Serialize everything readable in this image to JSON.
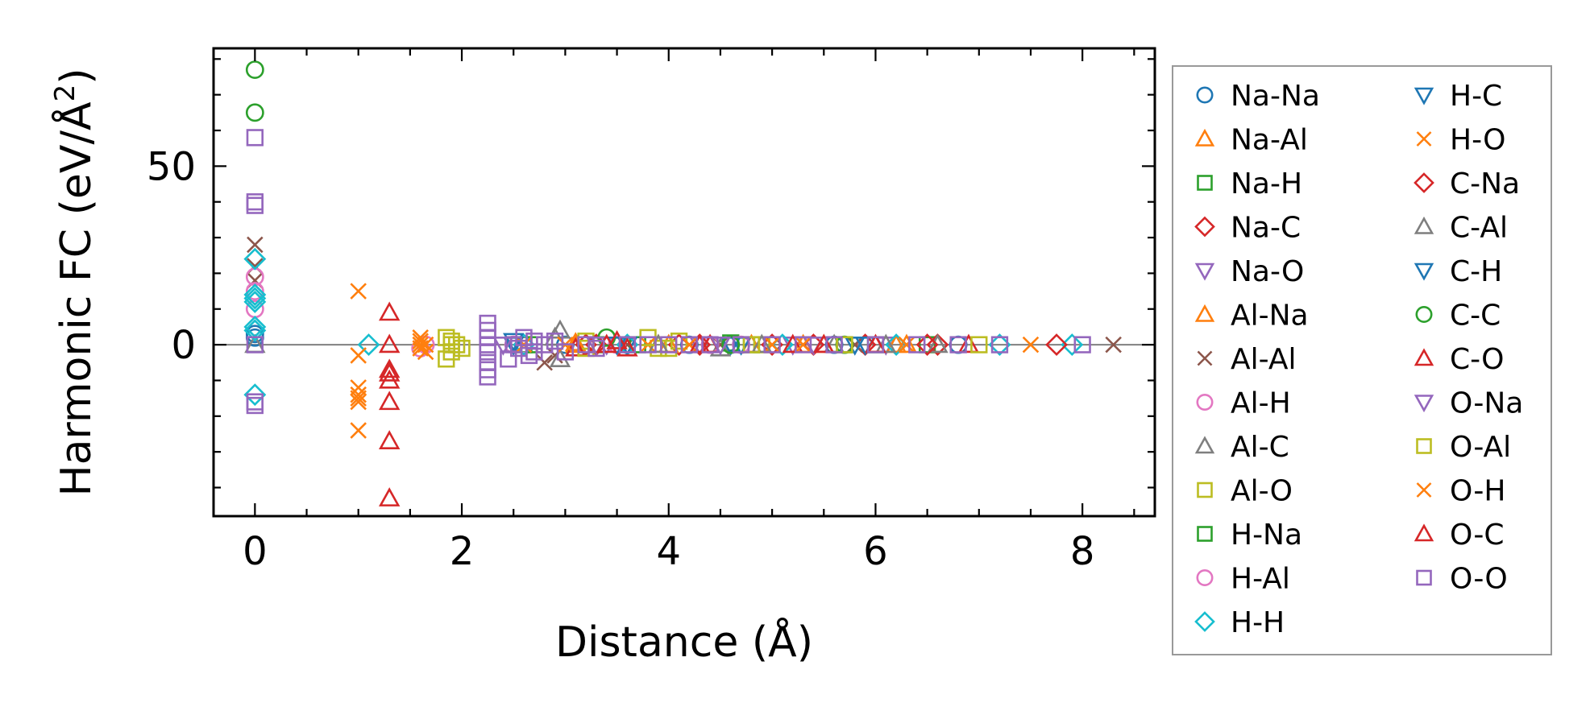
{
  "chart_data": {
    "type": "scatter",
    "title": "",
    "xlabel": "Distance (Å)",
    "ylabel": "Harmonic FC (eV/Å",
    "ylabel_superscript": "2",
    "ylabel_close": ")",
    "xlim": [
      -0.4,
      8.7
    ],
    "ylim": [
      -48,
      83
    ],
    "xticks": [
      0,
      2,
      4,
      6,
      8
    ],
    "yticks": [
      0,
      50
    ],
    "grid": false,
    "zero_line": true,
    "legend_position": "outside-right",
    "series": [
      {
        "name": "Na-Na",
        "marker": "circle",
        "color": "#1f77b4",
        "points": [
          [
            0,
            2
          ],
          [
            0,
            3
          ],
          [
            3.0,
            0
          ],
          [
            4.2,
            0
          ],
          [
            5.6,
            0
          ],
          [
            6.8,
            0
          ]
        ]
      },
      {
        "name": "Na-Al",
        "marker": "triangle-up",
        "color": "#ff7f0e",
        "points": [
          [
            3.1,
            0.5
          ],
          [
            3.9,
            0
          ],
          [
            4.8,
            0
          ],
          [
            5.5,
            0
          ],
          [
            6.3,
            0
          ]
        ]
      },
      {
        "name": "Na-H",
        "marker": "square",
        "color": "#2ca02c",
        "points": [
          [
            2.6,
            0
          ],
          [
            3.3,
            0
          ],
          [
            4.6,
            0.5
          ],
          [
            5.7,
            0
          ],
          [
            6.5,
            0
          ]
        ]
      },
      {
        "name": "Na-C",
        "marker": "diamond",
        "color": "#d62728",
        "points": [
          [
            3.2,
            0
          ],
          [
            4.1,
            0
          ],
          [
            5.0,
            0
          ],
          [
            5.9,
            0
          ],
          [
            6.6,
            0
          ]
        ]
      },
      {
        "name": "Na-O",
        "marker": "triangle-down",
        "color": "#9467bd",
        "points": [
          [
            2.5,
            0
          ],
          [
            3.4,
            0
          ],
          [
            4.3,
            0
          ],
          [
            5.2,
            0
          ],
          [
            6.1,
            0
          ]
        ]
      },
      {
        "name": "Al-Na",
        "marker": "triangle-up",
        "color": "#ff7f0e",
        "points": [
          [
            3.1,
            0
          ],
          [
            4.0,
            0
          ],
          [
            5.3,
            0
          ],
          [
            6.2,
            0
          ]
        ]
      },
      {
        "name": "Al-Al",
        "marker": "x",
        "color": "#8c564b",
        "points": [
          [
            0,
            22
          ],
          [
            0,
            28
          ],
          [
            0,
            18
          ],
          [
            2.8,
            -5
          ],
          [
            2.9,
            -3
          ],
          [
            3.6,
            0
          ],
          [
            4.5,
            0
          ],
          [
            5.8,
            0
          ],
          [
            8.3,
            0
          ]
        ]
      },
      {
        "name": "Al-H",
        "marker": "circle",
        "color": "#e377c2",
        "points": [
          [
            0,
            10
          ],
          [
            0,
            15
          ],
          [
            0,
            19
          ],
          [
            1.65,
            0
          ],
          [
            2.6,
            0
          ],
          [
            3.5,
            0
          ],
          [
            4.7,
            0
          ]
        ]
      },
      {
        "name": "Al-C",
        "marker": "triangle-up",
        "color": "#7f7f7f",
        "points": [
          [
            0,
            0
          ],
          [
            2.95,
            4
          ],
          [
            2.95,
            -4
          ],
          [
            4.5,
            -1
          ],
          [
            5.6,
            0
          ],
          [
            6.6,
            0
          ]
        ]
      },
      {
        "name": "Al-O",
        "marker": "square",
        "color": "#bcbd22",
        "points": [
          [
            1.85,
            -4
          ],
          [
            1.85,
            2
          ],
          [
            1.9,
            -2
          ],
          [
            1.95,
            0
          ],
          [
            1.9,
            1
          ],
          [
            2.0,
            -1
          ],
          [
            3.2,
            1
          ],
          [
            3.9,
            -1
          ],
          [
            4.1,
            1
          ],
          [
            4.9,
            0
          ]
        ]
      },
      {
        "name": "H-Na",
        "marker": "square",
        "color": "#2ca02c",
        "points": [
          [
            2.7,
            0
          ],
          [
            3.7,
            0
          ],
          [
            4.8,
            0
          ],
          [
            6.0,
            0
          ]
        ]
      },
      {
        "name": "H-Al",
        "marker": "circle",
        "color": "#e377c2",
        "points": [
          [
            1.6,
            -1
          ],
          [
            2.5,
            0
          ],
          [
            3.6,
            0
          ],
          [
            4.4,
            0
          ]
        ]
      },
      {
        "name": "H-H",
        "marker": "diamond",
        "color": "#17becf",
        "points": [
          [
            0,
            24
          ],
          [
            0,
            14
          ],
          [
            0,
            13
          ],
          [
            0,
            12
          ],
          [
            0,
            -14
          ],
          [
            0,
            5
          ],
          [
            0,
            4
          ],
          [
            1.1,
            0
          ],
          [
            2.6,
            0
          ],
          [
            3.6,
            0
          ],
          [
            5.1,
            0
          ],
          [
            6.2,
            0
          ],
          [
            7.2,
            0
          ],
          [
            7.9,
            0
          ]
        ]
      },
      {
        "name": "H-C",
        "marker": "triangle-down",
        "color": "#1f77b4",
        "points": [
          [
            2.5,
            1
          ],
          [
            3.5,
            0
          ],
          [
            4.6,
            0
          ],
          [
            5.8,
            0
          ]
        ]
      },
      {
        "name": "H-O",
        "marker": "x",
        "color": "#ff7f0e",
        "points": [
          [
            1.0,
            15
          ],
          [
            1.0,
            -3
          ],
          [
            1.0,
            -12
          ],
          [
            1.0,
            -14
          ],
          [
            1.0,
            -15
          ],
          [
            1.0,
            -24
          ],
          [
            1.6,
            1
          ],
          [
            1.6,
            -1
          ],
          [
            1.65,
            -2
          ],
          [
            1.6,
            2
          ],
          [
            1.65,
            0
          ],
          [
            2.6,
            0
          ],
          [
            3.8,
            0
          ],
          [
            5.0,
            0
          ],
          [
            6.3,
            0
          ],
          [
            7.5,
            0
          ]
        ]
      },
      {
        "name": "C-Na",
        "marker": "diamond",
        "color": "#d62728",
        "points": [
          [
            3.3,
            0
          ],
          [
            4.3,
            0
          ],
          [
            5.4,
            0
          ],
          [
            6.5,
            0
          ],
          [
            7.75,
            0
          ]
        ]
      },
      {
        "name": "C-Al",
        "marker": "triangle-up",
        "color": "#7f7f7f",
        "points": [
          [
            2.9,
            2
          ],
          [
            3.9,
            0
          ],
          [
            4.9,
            0
          ],
          [
            6.1,
            0
          ]
        ]
      },
      {
        "name": "C-H",
        "marker": "triangle-down",
        "color": "#1f77b4",
        "points": [
          [
            2.5,
            0
          ],
          [
            3.6,
            0
          ],
          [
            4.7,
            0
          ],
          [
            5.9,
            0
          ]
        ]
      },
      {
        "name": "C-C",
        "marker": "circle",
        "color": "#2ca02c",
        "points": [
          [
            0,
            77
          ],
          [
            0,
            65
          ],
          [
            3.4,
            2
          ],
          [
            4.6,
            0
          ],
          [
            5.7,
            0
          ]
        ]
      },
      {
        "name": "C-O",
        "marker": "triangle-up",
        "color": "#d62728",
        "points": [
          [
            1.3,
            9
          ],
          [
            1.3,
            0
          ],
          [
            1.3,
            -8
          ],
          [
            1.3,
            -10
          ],
          [
            1.3,
            -16
          ],
          [
            1.3,
            -27
          ],
          [
            1.3,
            -43
          ],
          [
            3.1,
            -1
          ],
          [
            3.5,
            1
          ],
          [
            3.6,
            -1
          ],
          [
            4.4,
            0
          ],
          [
            5.2,
            0
          ],
          [
            6.0,
            0
          ],
          [
            6.9,
            0
          ]
        ]
      },
      {
        "name": "O-Na",
        "marker": "triangle-down",
        "color": "#9467bd",
        "points": [
          [
            2.4,
            0
          ],
          [
            3.3,
            0
          ],
          [
            4.5,
            0
          ],
          [
            5.4,
            0
          ]
        ]
      },
      {
        "name": "O-Al",
        "marker": "square",
        "color": "#bcbd22",
        "points": [
          [
            1.9,
            0
          ],
          [
            3.2,
            -1
          ],
          [
            3.8,
            2
          ],
          [
            4.0,
            -1
          ],
          [
            4.8,
            0
          ],
          [
            5.7,
            0
          ],
          [
            7.0,
            0
          ]
        ]
      },
      {
        "name": "O-H",
        "marker": "x",
        "color": "#ff7f0e",
        "points": [
          [
            1.0,
            -16
          ],
          [
            1.6,
            0
          ],
          [
            3.0,
            0
          ],
          [
            4.2,
            0
          ],
          [
            5.3,
            0
          ]
        ]
      },
      {
        "name": "O-C",
        "marker": "triangle-up",
        "color": "#d62728",
        "points": [
          [
            1.3,
            -7
          ],
          [
            3.4,
            0
          ],
          [
            4.3,
            0
          ],
          [
            5.5,
            0
          ]
        ]
      },
      {
        "name": "O-O",
        "marker": "square",
        "color": "#9467bd",
        "points": [
          [
            0,
            58
          ],
          [
            0,
            40
          ],
          [
            0,
            39
          ],
          [
            0,
            0
          ],
          [
            0,
            -16
          ],
          [
            0,
            -17
          ],
          [
            2.25,
            6
          ],
          [
            2.25,
            4
          ],
          [
            2.25,
            2
          ],
          [
            2.25,
            0
          ],
          [
            2.25,
            -2
          ],
          [
            2.25,
            -5
          ],
          [
            2.25,
            -7
          ],
          [
            2.25,
            -9
          ],
          [
            2.45,
            -4
          ],
          [
            2.5,
            0
          ],
          [
            2.55,
            -1
          ],
          [
            2.6,
            2
          ],
          [
            2.65,
            -3
          ],
          [
            2.7,
            1
          ],
          [
            2.7,
            -2
          ],
          [
            2.8,
            0
          ],
          [
            2.9,
            1
          ],
          [
            3.0,
            -2
          ],
          [
            3.2,
            0
          ],
          [
            3.3,
            -1
          ],
          [
            3.6,
            0
          ],
          [
            3.8,
            0
          ],
          [
            4.0,
            0
          ],
          [
            4.2,
            0
          ],
          [
            4.4,
            0
          ],
          [
            4.7,
            0
          ],
          [
            5.0,
            0
          ],
          [
            5.3,
            0
          ],
          [
            5.6,
            0
          ],
          [
            6.0,
            0
          ],
          [
            6.4,
            0
          ],
          [
            6.8,
            0
          ],
          [
            7.2,
            0
          ],
          [
            8.0,
            0
          ]
        ]
      }
    ]
  }
}
